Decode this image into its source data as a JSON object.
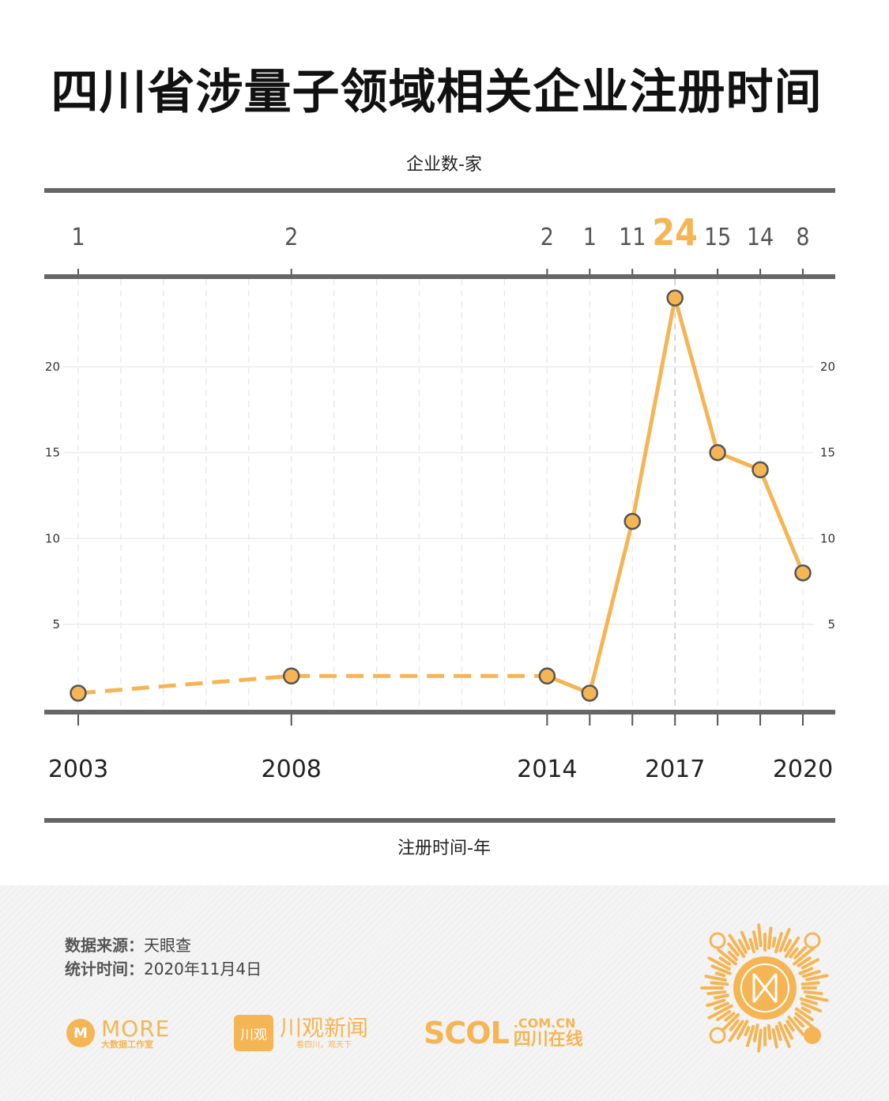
{
  "title": "四川省涉量子领域相关企业注册时间",
  "chart_data": {
    "type": "line",
    "title": "四川省涉量子领域相关企业注册时间",
    "ylabel": "企业数-家",
    "xlabel": "注册时间-年",
    "x": [
      2003,
      2008,
      2014,
      2015,
      2016,
      2017,
      2018,
      2019,
      2020
    ],
    "values": [
      1,
      2,
      2,
      1,
      11,
      24,
      15,
      14,
      8
    ],
    "count_labels": [
      "1",
      "2",
      "2",
      "1",
      "11",
      "24",
      "15",
      "14",
      "8"
    ],
    "highlight_index": 5,
    "dashed_until_index": 2,
    "x_tick_labels": [
      {
        "x": 2003,
        "label": "2003"
      },
      {
        "x": 2008,
        "label": "2008"
      },
      {
        "x": 2014,
        "label": "2014"
      },
      {
        "x": 2017,
        "label": "2017"
      },
      {
        "x": 2020,
        "label": "2020"
      }
    ],
    "y_ticks": [
      5,
      10,
      15,
      20
    ],
    "y_tick_labels": [
      "5",
      "10",
      "15",
      "20"
    ],
    "xlim": [
      2003,
      2020
    ],
    "ylim": [
      0.5,
      25
    ],
    "grid": true,
    "colors": {
      "line": "#f5b554",
      "marker_fill": "#f5b554",
      "marker_stroke": "#555555",
      "rule": "#666666",
      "peak_label": "#f5b554"
    }
  },
  "footer": {
    "source_key": "数据来源：",
    "source_value": "天眼查",
    "date_key": "统计时间：",
    "date_value": "2020年11月4日"
  },
  "logos": {
    "more_mark": "M",
    "more_name": "MORE",
    "more_sub": "大数据工作室",
    "cg_mark": "川观",
    "cg_name": "川观新闻",
    "cg_slogan": "看四川，观天下",
    "scol_name": "SCOL",
    "scol_domain": ".COM.CN",
    "scol_cn": "四川在线"
  },
  "accent_color": "#f5b554"
}
